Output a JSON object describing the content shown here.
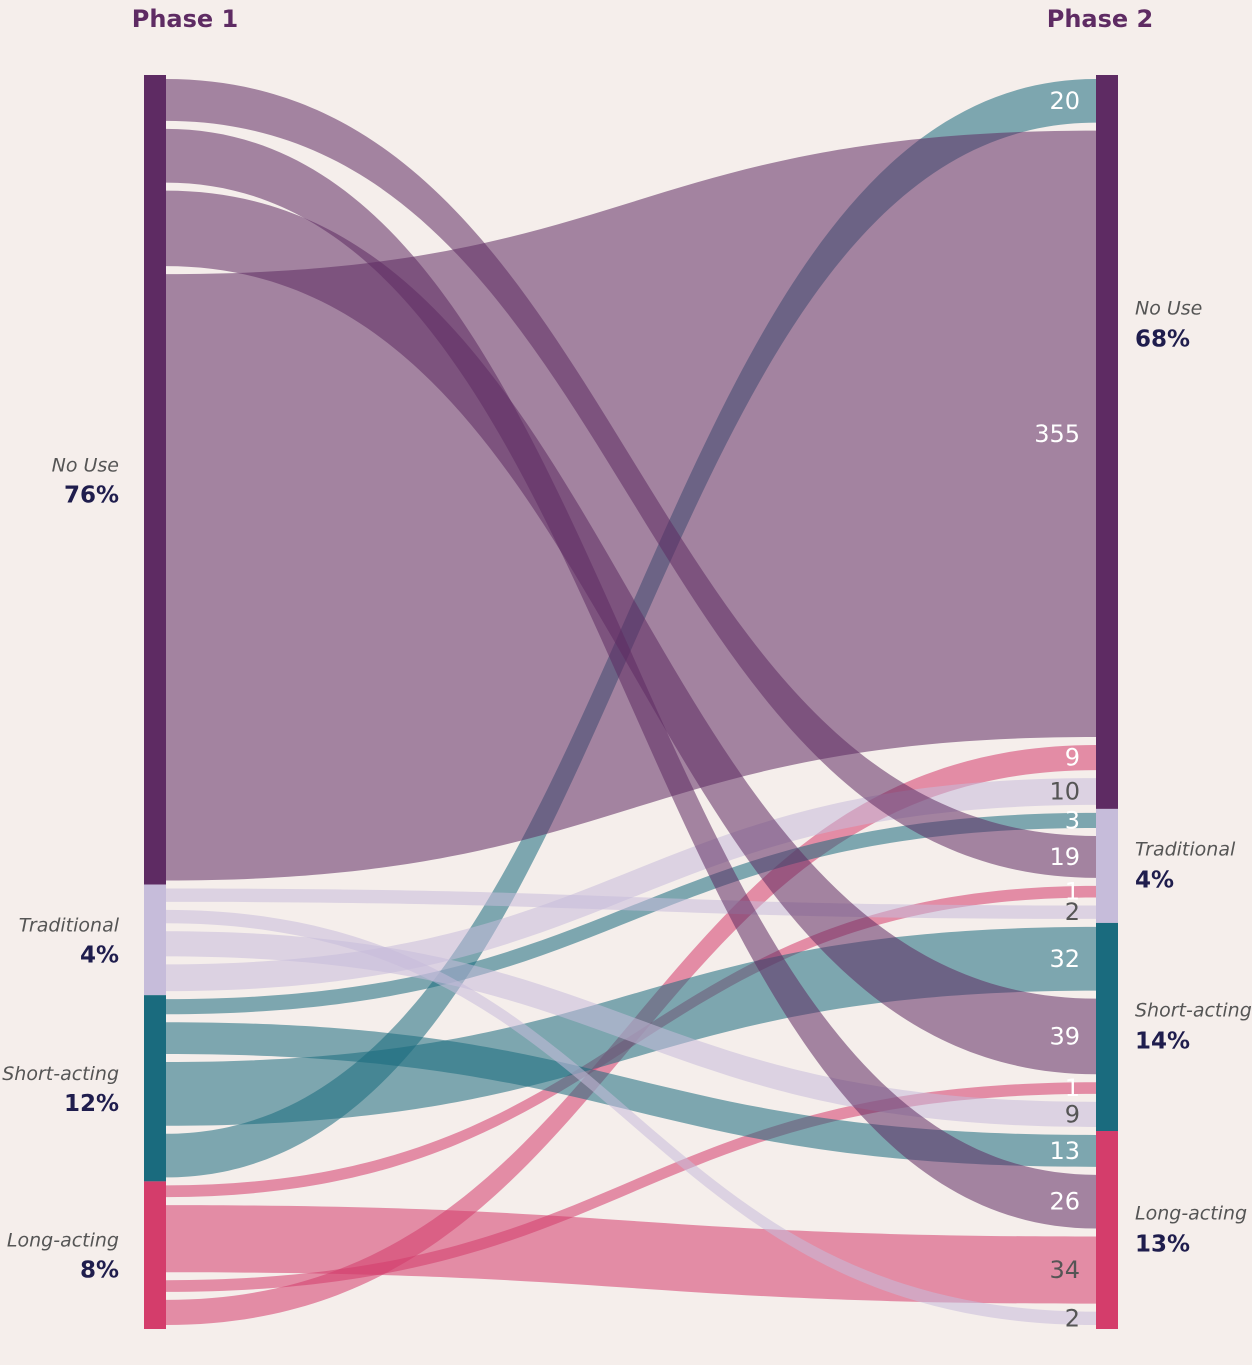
{
  "chart_data": {
    "type": "sankey",
    "stages": [
      "Phase 1",
      "Phase 2"
    ],
    "nodes": [
      "No Use",
      "Traditional",
      "Short-acting",
      "Long-acting"
    ],
    "node_colors": [
      "#5e2b63",
      "#c6bcda",
      "#1a6b7e",
      "#d43d6b"
    ],
    "phase1_percent": {
      "values": [
        76,
        4,
        12,
        8
      ],
      "value_labels": [
        "76%",
        "4%",
        "12%",
        "8%"
      ]
    },
    "phase2_percent": {
      "values": [
        68,
        4,
        14,
        13
      ],
      "value_labels": [
        "68%",
        "4%",
        "14%",
        "13%"
      ]
    },
    "links": [
      {
        "source": "Short-acting",
        "target": "No Use",
        "value": 20
      },
      {
        "source": "No Use",
        "target": "No Use",
        "value": 355
      },
      {
        "source": "Long-acting",
        "target": "No Use",
        "value": 9
      },
      {
        "source": "Traditional",
        "target": "No Use",
        "value": 10
      },
      {
        "source": "Short-acting",
        "target": "Traditional",
        "value": 3
      },
      {
        "source": "No Use",
        "target": "Traditional",
        "value": 19
      },
      {
        "source": "Long-acting",
        "target": "Traditional",
        "value": 1
      },
      {
        "source": "Traditional",
        "target": "Traditional",
        "value": 2
      },
      {
        "source": "Short-acting",
        "target": "Short-acting",
        "value": 32
      },
      {
        "source": "No Use",
        "target": "Short-acting",
        "value": 39
      },
      {
        "source": "Long-acting",
        "target": "Short-acting",
        "value": 1
      },
      {
        "source": "Traditional",
        "target": "Short-acting",
        "value": 9
      },
      {
        "source": "Short-acting",
        "target": "Long-acting",
        "value": 13
      },
      {
        "source": "No Use",
        "target": "Long-acting",
        "value": 26
      },
      {
        "source": "Long-acting",
        "target": "Long-acting",
        "value": 34
      },
      {
        "source": "Traditional",
        "target": "Long-acting",
        "value": 2
      }
    ]
  }
}
